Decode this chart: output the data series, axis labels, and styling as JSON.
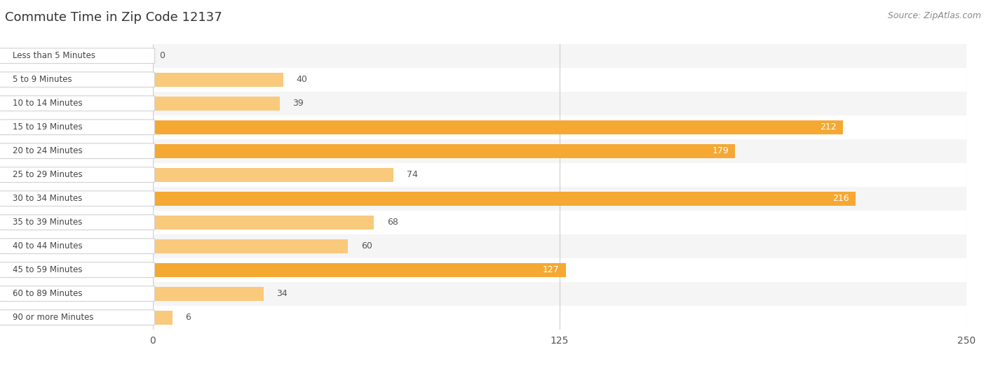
{
  "title": "Commute Time in Zip Code 12137",
  "source": "Source: ZipAtlas.com",
  "categories": [
    "Less than 5 Minutes",
    "5 to 9 Minutes",
    "10 to 14 Minutes",
    "15 to 19 Minutes",
    "20 to 24 Minutes",
    "25 to 29 Minutes",
    "30 to 34 Minutes",
    "35 to 39 Minutes",
    "40 to 44 Minutes",
    "45 to 59 Minutes",
    "60 to 89 Minutes",
    "90 or more Minutes"
  ],
  "values": [
    0,
    40,
    39,
    212,
    179,
    74,
    216,
    68,
    60,
    127,
    34,
    6
  ],
  "xlim": [
    0,
    250
  ],
  "xticks": [
    0,
    125,
    250
  ],
  "bar_color_light": "#f9c97c",
  "bar_color_dark": "#f5a832",
  "threshold": 100,
  "label_color_inside": "#ffffff",
  "label_color_outside": "#555555",
  "title_fontsize": 13,
  "source_fontsize": 9,
  "bar_height": 0.58,
  "row_bg_even": "#f5f5f5",
  "row_bg_odd": "#ffffff",
  "label_box_color": "#ffffff",
  "label_box_edge": "#cccccc",
  "label_text_color": "#444444",
  "grid_color": "#cccccc",
  "tick_color": "#555555"
}
